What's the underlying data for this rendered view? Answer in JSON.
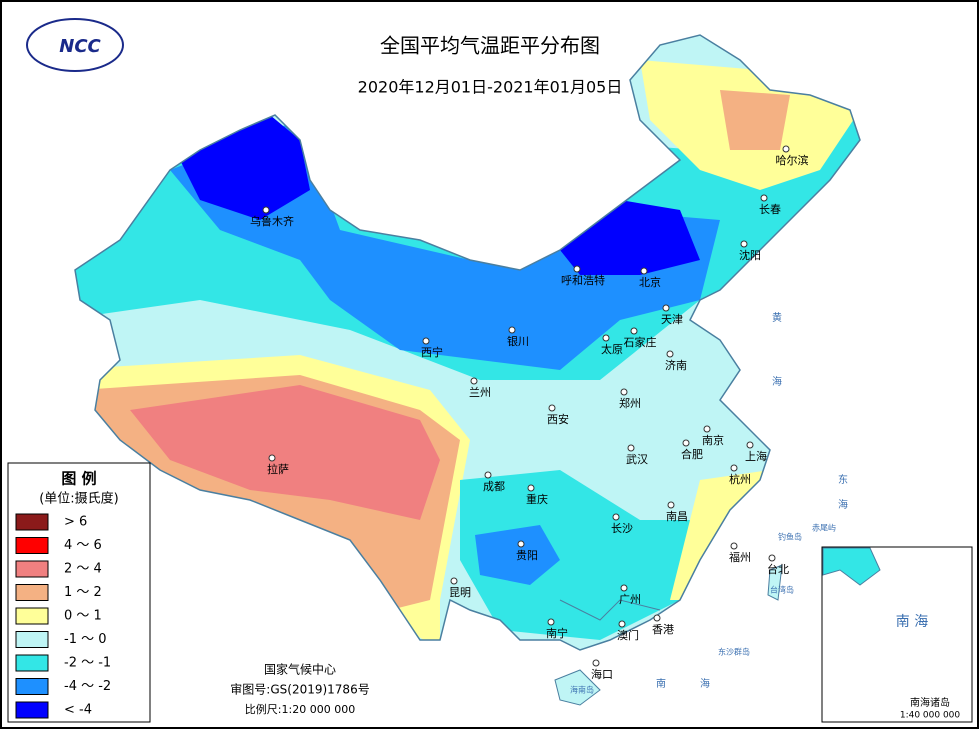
{
  "header": {
    "title": "全国平均气温距平分布图",
    "subtitle": "2020年12月01日-2021年01月05日",
    "logo": "NCC"
  },
  "legend": {
    "title": "图 例",
    "unit": "(单位:摄氏度)",
    "items": [
      {
        "label": "> 6",
        "color": "#8b1a1a"
      },
      {
        "label": "4 ～ 6",
        "color": "#ff0000"
      },
      {
        "label": "2 ～ 4",
        "color": "#f08080"
      },
      {
        "label": "1 ～ 2",
        "color": "#f4b183"
      },
      {
        "label": "0 ～ 1",
        "color": "#ffff99"
      },
      {
        "label": "-1 ～ 0",
        "color": "#bff5f5"
      },
      {
        "label": "-2 ～ -1",
        "color": "#33e6e6"
      },
      {
        "label": "-4 ～ -2",
        "color": "#1e90ff"
      },
      {
        "label": "< -4",
        "color": "#0000ff"
      }
    ]
  },
  "cities": [
    "乌鲁木齐",
    "呼和浩特",
    "北京",
    "天津",
    "哈尔滨",
    "长春",
    "沈阳",
    "西宁",
    "银川",
    "兰州",
    "石家庄",
    "太原",
    "济南",
    "西安",
    "郑州",
    "拉萨",
    "成都",
    "重庆",
    "武汉",
    "南京",
    "合肥",
    "上海",
    "杭州",
    "长沙",
    "南昌",
    "贵阳",
    "福州",
    "台北",
    "昆明",
    "南宁",
    "广州",
    "澳门",
    "香港",
    "海口"
  ],
  "seas": [
    "黄",
    "海",
    "东",
    "海",
    "南",
    "海"
  ],
  "islands": [
    "台湾岛",
    "钓鱼岛",
    "赤尾屿",
    "东沙群岛",
    "海南岛"
  ],
  "footer": {
    "org": "国家气候中心",
    "approval": "审图号:GS(2019)1786号",
    "scale": "比例尺:1:20 000 000"
  },
  "inset": {
    "sea": "南 海",
    "title": "南海诸岛",
    "scale": "1:40 000 000"
  }
}
